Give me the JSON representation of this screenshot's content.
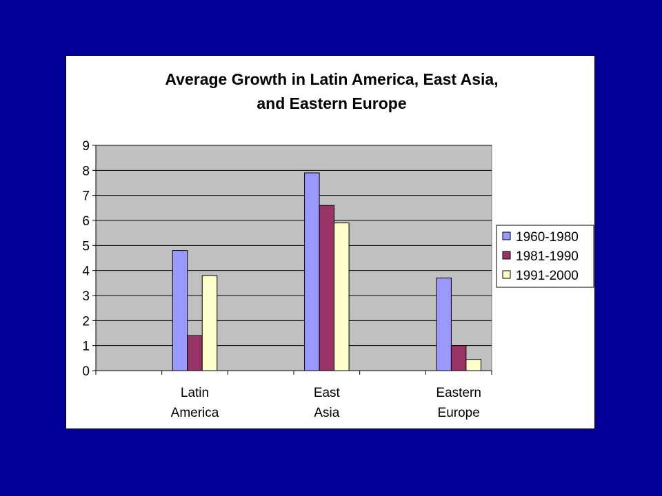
{
  "colors": {
    "background": "#000099",
    "plot_area": "#c0c0c0",
    "series": [
      "#9999ff",
      "#993366",
      "#ffffcc"
    ]
  },
  "chart_data": {
    "type": "bar",
    "title": [
      "Average Growth in Latin America, East Asia,",
      "and Eastern Europe"
    ],
    "xlabel": "",
    "ylabel": "",
    "categories": [
      [
        "",
        ""
      ],
      [
        "Latin",
        "America"
      ],
      [
        "",
        ""
      ],
      [
        "East",
        "Asia"
      ],
      [
        "",
        ""
      ],
      [
        "Eastern",
        "Europe"
      ]
    ],
    "series": [
      {
        "name": "1960-1980",
        "values": [
          null,
          4.8,
          null,
          7.9,
          null,
          3.7
        ]
      },
      {
        "name": "1981-1990",
        "values": [
          null,
          1.4,
          null,
          6.6,
          null,
          1.0
        ]
      },
      {
        "name": "1991-2000",
        "values": [
          null,
          3.8,
          null,
          5.9,
          null,
          0.45
        ]
      }
    ],
    "ylim": [
      0,
      9
    ],
    "yticks": [
      "0",
      "1",
      "2",
      "3",
      "4",
      "5",
      "6",
      "7",
      "8",
      "9"
    ],
    "grid": true,
    "legend_position": "right"
  }
}
